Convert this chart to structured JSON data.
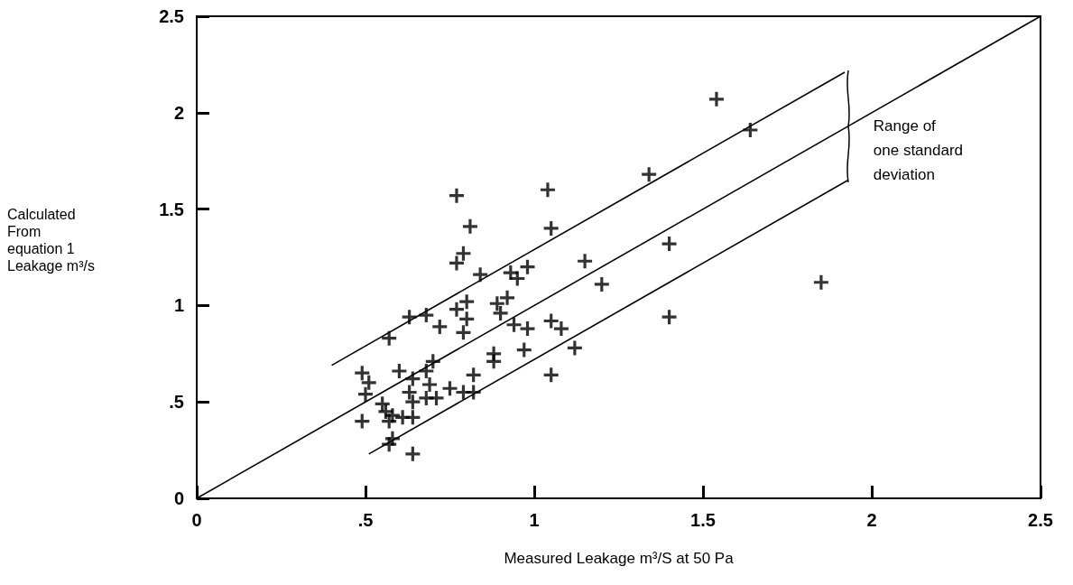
{
  "chart_data": {
    "type": "scatter",
    "xlabel": "Measured Leakage m³/S at 50 Pa",
    "ylabel": "Calculated\nFrom\nequation 1\nLeakage m³/s",
    "annotations": [
      {
        "text": "Range of\none standard\ndeviation",
        "x": 1.93,
        "y": 1.93
      }
    ],
    "xlim": [
      0,
      2.5
    ],
    "ylim": [
      0,
      2.5
    ],
    "xticks": [
      0,
      {
        "value": 0.5,
        "label": ".5"
      },
      1,
      1.5,
      2,
      2.5
    ],
    "yticks": [
      0,
      {
        "value": 0.5,
        "label": ".5"
      },
      1,
      1.5,
      2,
      2.5
    ],
    "grid": false,
    "marker": "cross",
    "series": [
      {
        "color": "#000000",
        "x": [
          1.54,
          1.64,
          1.34,
          1.4,
          1.4,
          1.85,
          0.77,
          1.04,
          0.81,
          1.05,
          0.79,
          0.77,
          0.84,
          0.93,
          0.98,
          0.95,
          1.15,
          1.2,
          0.92,
          0.89,
          0.9,
          0.8,
          0.77,
          0.8,
          0.63,
          0.68,
          0.57,
          0.72,
          0.79,
          0.94,
          0.98,
          1.05,
          1.08,
          1.12,
          0.97,
          0.88,
          0.88,
          1.05,
          0.82,
          0.7,
          0.49,
          0.51,
          0.5,
          0.6,
          0.64,
          0.68,
          0.69,
          0.63,
          0.64,
          0.68,
          0.71,
          0.75,
          0.79,
          0.82,
          0.55,
          0.56,
          0.58,
          0.49,
          0.61,
          0.64,
          0.57,
          0.58,
          0.57,
          0.64
        ],
        "values": [
          2.07,
          1.91,
          1.68,
          1.32,
          0.94,
          1.12,
          1.57,
          1.6,
          1.41,
          1.4,
          1.27,
          1.22,
          1.16,
          1.17,
          1.2,
          1.14,
          1.23,
          1.11,
          1.04,
          1.01,
          0.96,
          1.02,
          0.98,
          0.93,
          0.94,
          0.95,
          0.83,
          0.89,
          0.86,
          0.9,
          0.88,
          0.92,
          0.88,
          0.78,
          0.77,
          0.75,
          0.71,
          0.64,
          0.64,
          0.71,
          0.65,
          0.6,
          0.54,
          0.66,
          0.62,
          0.66,
          0.59,
          0.55,
          0.5,
          0.52,
          0.52,
          0.57,
          0.55,
          0.55,
          0.49,
          0.45,
          0.43,
          0.4,
          0.42,
          0.42,
          0.4,
          0.31,
          0.28,
          0.23
        ]
      },
      {
        "type": "line",
        "color": "#000000",
        "marker": "none",
        "line_style": "solid",
        "x": [
          0,
          2.5
        ],
        "values": [
          0,
          2.5
        ]
      },
      {
        "type": "line",
        "color": "#000000",
        "marker": "none",
        "line_style": "solid",
        "x": [
          0.4,
          1.92
        ],
        "values": [
          0.69,
          2.21
        ]
      },
      {
        "type": "line",
        "color": "#000000",
        "marker": "none",
        "line_style": "solid",
        "x": [
          0.51,
          1.93
        ],
        "values": [
          0.23,
          1.65
        ]
      }
    ]
  }
}
